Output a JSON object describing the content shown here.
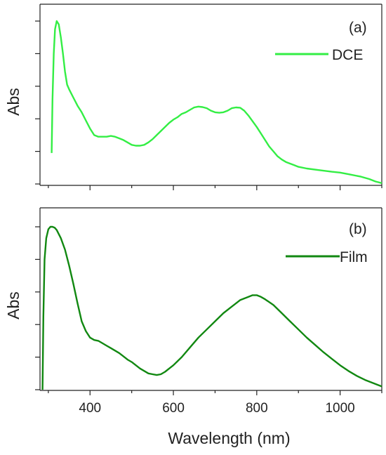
{
  "chart_data": [
    {
      "type": "line",
      "panel_label": "(a)",
      "ylabel": "Abs",
      "xlabel": "",
      "xlim": [
        280,
        1100
      ],
      "ylim": [
        0,
        1.0
      ],
      "x_ticks": [
        400,
        600,
        800,
        1000
      ],
      "x_tick_labels": [
        "",
        "",
        "",
        ""
      ],
      "y_ticks": [
        0.0,
        0.2,
        0.4,
        0.6,
        0.8,
        1.0
      ],
      "legend_position": "top-right",
      "series": [
        {
          "name": "DCE",
          "color": "#33ee44",
          "x": [
            308,
            310,
            313,
            316,
            320,
            325,
            330,
            335,
            340,
            345,
            350,
            360,
            370,
            380,
            390,
            400,
            410,
            420,
            430,
            440,
            450,
            460,
            470,
            480,
            490,
            500,
            510,
            520,
            530,
            540,
            550,
            560,
            570,
            580,
            590,
            600,
            610,
            620,
            630,
            640,
            650,
            660,
            670,
            680,
            690,
            700,
            710,
            720,
            730,
            740,
            750,
            760,
            770,
            780,
            790,
            800,
            810,
            820,
            830,
            840,
            850,
            860,
            870,
            880,
            890,
            900,
            920,
            950,
            980,
            1000,
            1020,
            1050,
            1070,
            1085,
            1100
          ],
          "values": [
            0.19,
            0.52,
            0.8,
            0.95,
            1.0,
            0.98,
            0.9,
            0.8,
            0.69,
            0.61,
            0.58,
            0.53,
            0.48,
            0.44,
            0.39,
            0.34,
            0.3,
            0.29,
            0.29,
            0.29,
            0.295,
            0.29,
            0.28,
            0.27,
            0.255,
            0.24,
            0.235,
            0.235,
            0.24,
            0.255,
            0.275,
            0.3,
            0.325,
            0.35,
            0.375,
            0.395,
            0.41,
            0.43,
            0.44,
            0.455,
            0.47,
            0.475,
            0.472,
            0.465,
            0.45,
            0.44,
            0.437,
            0.44,
            0.45,
            0.465,
            0.47,
            0.468,
            0.45,
            0.42,
            0.385,
            0.35,
            0.31,
            0.27,
            0.23,
            0.2,
            0.17,
            0.15,
            0.135,
            0.125,
            0.115,
            0.105,
            0.095,
            0.085,
            0.075,
            0.07,
            0.06,
            0.045,
            0.03,
            0.015,
            0.005
          ]
        }
      ]
    },
    {
      "type": "line",
      "panel_label": "(b)",
      "ylabel": "Abs",
      "xlabel": "Wavelength (nm)",
      "xlim": [
        280,
        1100
      ],
      "ylim": [
        0,
        1.0
      ],
      "x_ticks": [
        400,
        600,
        800,
        1000
      ],
      "x_tick_labels": [
        "400",
        "600",
        "800",
        "1000"
      ],
      "y_ticks": [
        0.0,
        0.2,
        0.4,
        0.6,
        0.8,
        1.0
      ],
      "legend_position": "top-right",
      "series": [
        {
          "name": "Film",
          "color": "#118811",
          "x": [
            286,
            288,
            291,
            295,
            300,
            305,
            310,
            315,
            320,
            330,
            340,
            350,
            360,
            370,
            380,
            390,
            400,
            410,
            420,
            430,
            440,
            450,
            460,
            470,
            480,
            490,
            500,
            510,
            520,
            530,
            540,
            550,
            560,
            570,
            580,
            590,
            600,
            620,
            640,
            660,
            680,
            700,
            720,
            740,
            760,
            780,
            790,
            800,
            810,
            820,
            840,
            860,
            880,
            900,
            920,
            940,
            960,
            980,
            1000,
            1020,
            1040,
            1060,
            1080,
            1100
          ],
          "values": [
            0.0,
            0.45,
            0.8,
            0.93,
            0.985,
            1.0,
            1.0,
            0.995,
            0.98,
            0.93,
            0.86,
            0.76,
            0.65,
            0.53,
            0.42,
            0.36,
            0.32,
            0.305,
            0.3,
            0.285,
            0.27,
            0.255,
            0.24,
            0.225,
            0.205,
            0.185,
            0.17,
            0.15,
            0.13,
            0.115,
            0.1,
            0.095,
            0.09,
            0.095,
            0.11,
            0.13,
            0.15,
            0.2,
            0.26,
            0.32,
            0.37,
            0.42,
            0.47,
            0.51,
            0.55,
            0.57,
            0.58,
            0.58,
            0.57,
            0.555,
            0.52,
            0.47,
            0.42,
            0.37,
            0.32,
            0.275,
            0.23,
            0.19,
            0.15,
            0.115,
            0.085,
            0.06,
            0.04,
            0.02
          ]
        }
      ]
    }
  ]
}
